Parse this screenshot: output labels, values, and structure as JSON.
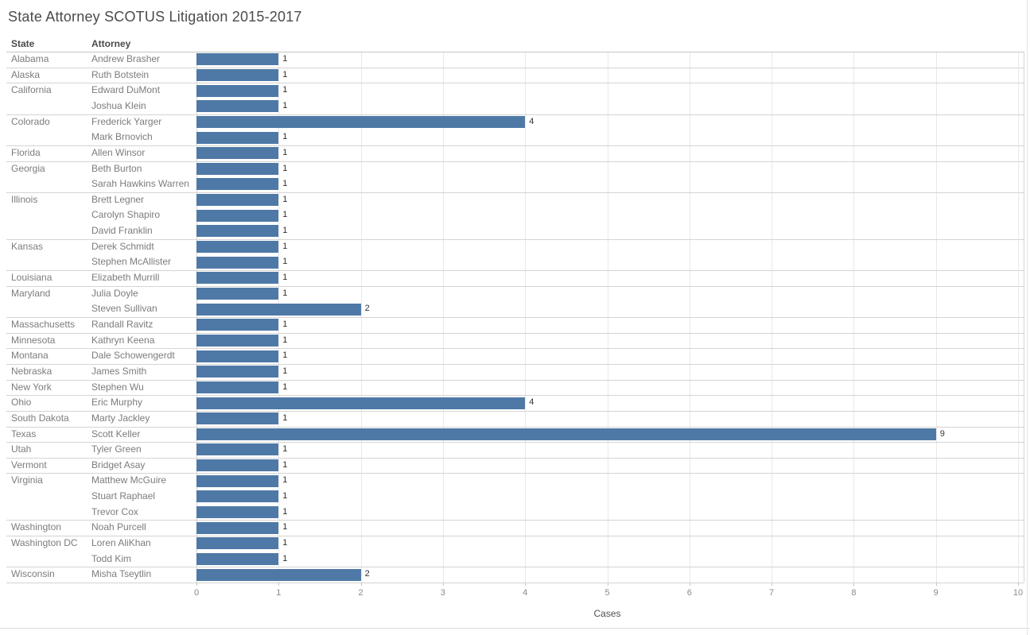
{
  "title": "State Attorney SCOTUS Litigation 2015-2017",
  "table": {
    "state_header": "State",
    "attorney_header": "Attorney"
  },
  "axis": {
    "label": "Cases",
    "ticks": [
      "0",
      "1",
      "2",
      "3",
      "4",
      "5",
      "6",
      "7",
      "8",
      "9",
      "10"
    ],
    "min": 0,
    "max": 10
  },
  "colors": {
    "bar": "#4e79a7",
    "gridline": "#e9e9e9",
    "group_separator": "#d4d4d4",
    "header_separator": "#c6c6c6"
  },
  "chart_data": {
    "type": "bar",
    "orientation": "horizontal",
    "title": "State Attorney SCOTUS Litigation 2015-2017",
    "xlabel": "Cases",
    "ylabel": "",
    "xlim": [
      0,
      10
    ],
    "grid": true,
    "value_labels": true,
    "groups": [
      {
        "state": "Alabama",
        "attorneys": [
          {
            "name": "Andrew Brasher",
            "cases": 1
          }
        ]
      },
      {
        "state": "Alaska",
        "attorneys": [
          {
            "name": "Ruth Botstein",
            "cases": 1
          }
        ]
      },
      {
        "state": "California",
        "attorneys": [
          {
            "name": "Edward DuMont",
            "cases": 1
          },
          {
            "name": "Joshua Klein",
            "cases": 1
          }
        ]
      },
      {
        "state": "Colorado",
        "attorneys": [
          {
            "name": "Frederick Yarger",
            "cases": 4
          },
          {
            "name": "Mark Brnovich",
            "cases": 1
          }
        ]
      },
      {
        "state": "Florida",
        "attorneys": [
          {
            "name": "Allen Winsor",
            "cases": 1
          }
        ]
      },
      {
        "state": "Georgia",
        "attorneys": [
          {
            "name": "Beth Burton",
            "cases": 1
          },
          {
            "name": "Sarah Hawkins Warren",
            "cases": 1
          }
        ]
      },
      {
        "state": "Illinois",
        "attorneys": [
          {
            "name": "Brett Legner",
            "cases": 1
          },
          {
            "name": "Carolyn Shapiro",
            "cases": 1
          },
          {
            "name": "David Franklin",
            "cases": 1
          }
        ]
      },
      {
        "state": "Kansas",
        "attorneys": [
          {
            "name": "Derek Schmidt",
            "cases": 1
          },
          {
            "name": "Stephen McAllister",
            "cases": 1
          }
        ]
      },
      {
        "state": "Louisiana",
        "attorneys": [
          {
            "name": "Elizabeth Murrill",
            "cases": 1
          }
        ]
      },
      {
        "state": "Maryland",
        "attorneys": [
          {
            "name": "Julia Doyle",
            "cases": 1
          },
          {
            "name": "Steven Sullivan",
            "cases": 2
          }
        ]
      },
      {
        "state": "Massachusetts",
        "attorneys": [
          {
            "name": "Randall Ravitz",
            "cases": 1
          }
        ]
      },
      {
        "state": "Minnesota",
        "attorneys": [
          {
            "name": "Kathryn Keena",
            "cases": 1
          }
        ]
      },
      {
        "state": "Montana",
        "attorneys": [
          {
            "name": "Dale Schowengerdt",
            "cases": 1
          }
        ]
      },
      {
        "state": "Nebraska",
        "attorneys": [
          {
            "name": "James Smith",
            "cases": 1
          }
        ]
      },
      {
        "state": "New York",
        "attorneys": [
          {
            "name": "Stephen Wu",
            "cases": 1
          }
        ]
      },
      {
        "state": "Ohio",
        "attorneys": [
          {
            "name": "Eric Murphy",
            "cases": 4
          }
        ]
      },
      {
        "state": "South Dakota",
        "attorneys": [
          {
            "name": "Marty Jackley",
            "cases": 1
          }
        ]
      },
      {
        "state": "Texas",
        "attorneys": [
          {
            "name": "Scott Keller",
            "cases": 9
          }
        ]
      },
      {
        "state": "Utah",
        "attorneys": [
          {
            "name": "Tyler Green",
            "cases": 1
          }
        ]
      },
      {
        "state": "Vermont",
        "attorneys": [
          {
            "name": "Bridget Asay",
            "cases": 1
          }
        ]
      },
      {
        "state": "Virginia",
        "attorneys": [
          {
            "name": "Matthew McGuire",
            "cases": 1
          },
          {
            "name": "Stuart Raphael",
            "cases": 1
          },
          {
            "name": "Trevor Cox",
            "cases": 1
          }
        ]
      },
      {
        "state": "Washington",
        "attorneys": [
          {
            "name": "Noah Purcell",
            "cases": 1
          }
        ]
      },
      {
        "state": "Washington DC",
        "attorneys": [
          {
            "name": "Loren AliKhan",
            "cases": 1
          },
          {
            "name": "Todd Kim",
            "cases": 1
          }
        ]
      },
      {
        "state": "Wisconsin",
        "attorneys": [
          {
            "name": "Misha Tseytlin",
            "cases": 2
          }
        ]
      }
    ]
  }
}
